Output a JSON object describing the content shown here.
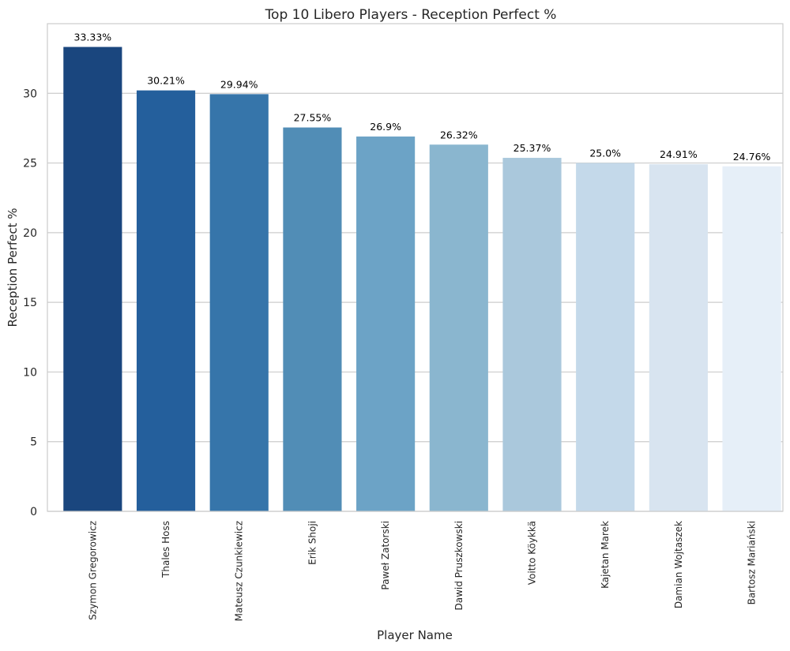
{
  "chart_data": {
    "type": "bar",
    "title": "Top 10 Libero Players - Reception Perfect %",
    "xlabel": "Player Name",
    "ylabel": "Reception Perfect %",
    "ylim": [
      0,
      35
    ],
    "yticks": [
      0,
      5,
      10,
      15,
      20,
      25,
      30
    ],
    "grid": "horizontal",
    "categories": [
      "Szymon Gregorowicz",
      "Thales Hoss",
      "Mateusz Czunkiewicz",
      "Erik Shoji",
      "Paweł Zatorski",
      "Dawid Pruszkowski",
      "Voitto Köykkä",
      "Kajetan Marek",
      "Damian Wojtaszek",
      "Bartosz Mariański"
    ],
    "values": [
      33.33,
      30.21,
      29.94,
      27.55,
      26.9,
      26.32,
      25.37,
      25.0,
      24.91,
      24.76
    ],
    "data_labels": [
      "33.33%",
      "30.21%",
      "29.94%",
      "27.55%",
      "26.9%",
      "26.32%",
      "25.37%",
      "25.0%",
      "24.91%",
      "24.76%"
    ],
    "colors": [
      "#1a467e",
      "#245f9c",
      "#3675aa",
      "#518db6",
      "#6ca3c6",
      "#8ab6cf",
      "#aac8dc",
      "#c4d9ea",
      "#d8e4f0",
      "#e6eff8"
    ],
    "frame_color": "#cccccc",
    "grid_color": "#cccccc"
  }
}
